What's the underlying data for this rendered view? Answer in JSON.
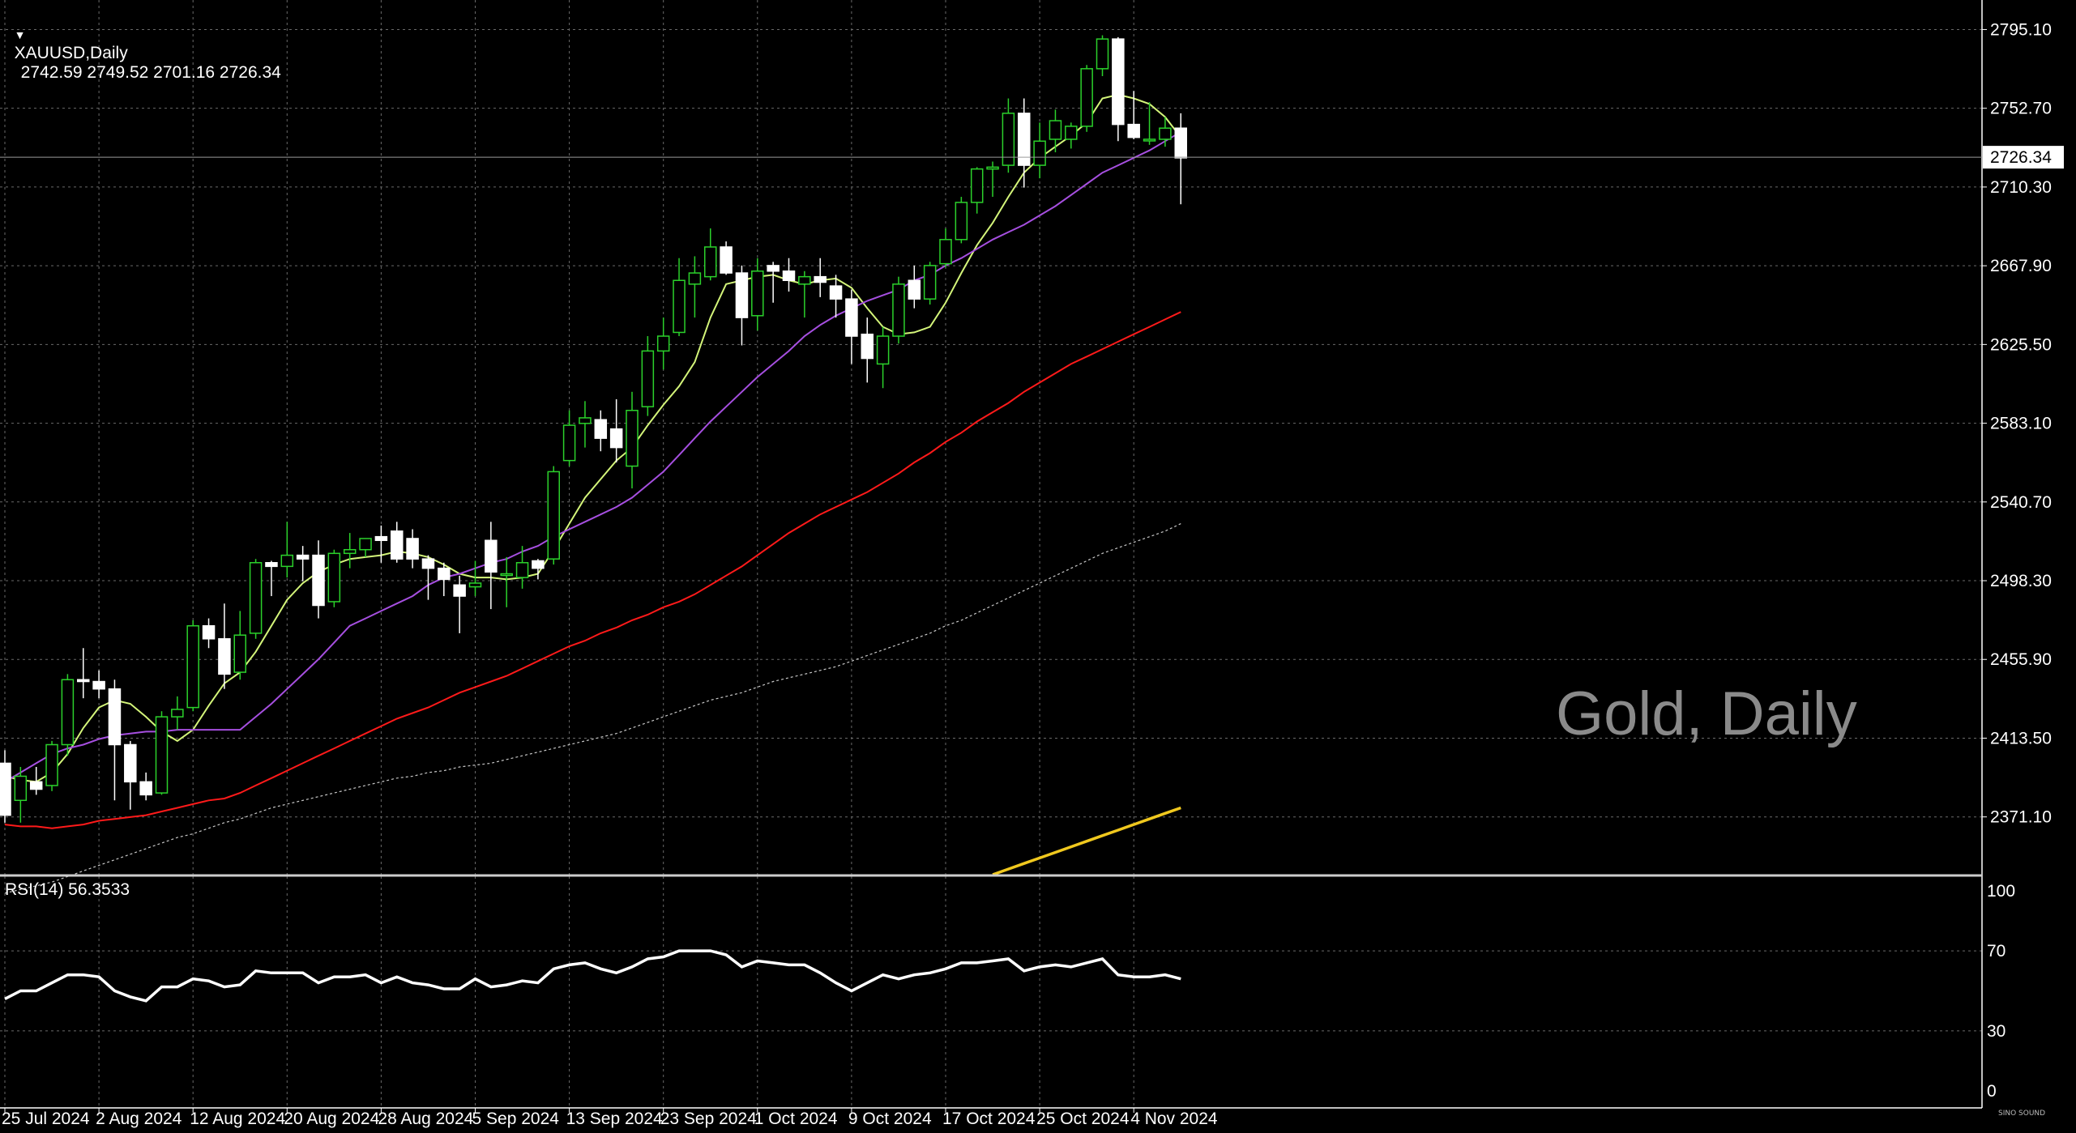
{
  "header": {
    "symbol": "XAUUSD,Daily",
    "ohlc": "2742.59 2749.52 2701.16 2726.34",
    "marker": "▼"
  },
  "rsi_header": {
    "label": "RSI(14) 56.3533"
  },
  "watermark": "Gold, Daily",
  "logo": "SINO SOUND",
  "chart_data": {
    "type": "candlestick",
    "price_axis": {
      "ticks": [
        "2795.10",
        "2752.70",
        "2710.30",
        "2667.90",
        "2625.50",
        "2583.10",
        "2540.70",
        "2498.30",
        "2455.90",
        "2413.50",
        "2371.10"
      ],
      "current_price": "2726.34",
      "ylim": [
        2340,
        2811
      ]
    },
    "date_labels": [
      "25 Jul 2024",
      "2 Aug 2024",
      "12 Aug 2024",
      "20 Aug 2024",
      "28 Aug 2024",
      "5 Sep 2024",
      "13 Sep 2024",
      "23 Sep 2024",
      "1 Oct 2024",
      "9 Oct 2024",
      "17 Oct 2024",
      "25 Oct 2024",
      "4 Nov 2024"
    ],
    "date_label_index": [
      0,
      6,
      12,
      18,
      24,
      30,
      36,
      42,
      48,
      54,
      60,
      66,
      72
    ],
    "ohlc": [
      [
        2400,
        2407,
        2368,
        2372
      ],
      [
        2380,
        2398,
        2368,
        2393
      ],
      [
        2390,
        2398,
        2383,
        2386
      ],
      [
        2388,
        2412,
        2385,
        2410
      ],
      [
        2410,
        2448,
        2404,
        2445
      ],
      [
        2445,
        2462,
        2435,
        2444
      ],
      [
        2444,
        2450,
        2435,
        2440
      ],
      [
        2440,
        2445,
        2380,
        2410
      ],
      [
        2410,
        2412,
        2375,
        2390
      ],
      [
        2390,
        2395,
        2380,
        2383
      ],
      [
        2384,
        2428,
        2383,
        2425
      ],
      [
        2425,
        2436,
        2418,
        2429
      ],
      [
        2430,
        2477,
        2428,
        2474
      ],
      [
        2474,
        2478,
        2462,
        2467
      ],
      [
        2467,
        2486,
        2440,
        2448
      ],
      [
        2449,
        2482,
        2445,
        2469
      ],
      [
        2470,
        2510,
        2467,
        2508
      ],
      [
        2508,
        2509,
        2490,
        2506
      ],
      [
        2506,
        2530,
        2500,
        2512
      ],
      [
        2512,
        2517,
        2498,
        2510
      ],
      [
        2512,
        2520,
        2478,
        2485
      ],
      [
        2487,
        2515,
        2484,
        2513
      ],
      [
        2513,
        2524,
        2505,
        2515
      ],
      [
        2515,
        2520,
        2511,
        2521
      ],
      [
        2522,
        2528,
        2508,
        2520
      ],
      [
        2525,
        2530,
        2508,
        2510
      ],
      [
        2521,
        2526,
        2505,
        2510
      ],
      [
        2510,
        2512,
        2488,
        2505
      ],
      [
        2505,
        2508,
        2490,
        2499
      ],
      [
        2496,
        2501,
        2470,
        2490
      ],
      [
        2495,
        2509,
        2490,
        2497
      ],
      [
        2520,
        2530,
        2483,
        2503
      ],
      [
        2502,
        2511,
        2484,
        2502
      ],
      [
        2500,
        2517,
        2494,
        2508
      ],
      [
        2509,
        2510,
        2499,
        2505
      ],
      [
        2510,
        2560,
        2507,
        2557
      ],
      [
        2563,
        2590,
        2560,
        2582
      ],
      [
        2583,
        2595,
        2570,
        2586
      ],
      [
        2585,
        2590,
        2568,
        2575
      ],
      [
        2580,
        2596,
        2562,
        2570
      ],
      [
        2560,
        2600,
        2548,
        2590
      ],
      [
        2592,
        2630,
        2587,
        2622
      ],
      [
        2622,
        2640,
        2612,
        2630
      ],
      [
        2632,
        2672,
        2630,
        2660
      ],
      [
        2658,
        2673,
        2640,
        2664
      ],
      [
        2662,
        2688,
        2660,
        2678
      ],
      [
        2678,
        2681,
        2663,
        2664
      ],
      [
        2664,
        2668,
        2625,
        2640
      ],
      [
        2641,
        2672,
        2633,
        2665
      ],
      [
        2668,
        2670,
        2648,
        2665
      ],
      [
        2665,
        2672,
        2654,
        2660
      ],
      [
        2658,
        2665,
        2640,
        2662
      ],
      [
        2662,
        2672,
        2651,
        2659
      ],
      [
        2657,
        2663,
        2640,
        2650
      ],
      [
        2650,
        2655,
        2615,
        2630
      ],
      [
        2631,
        2640,
        2605,
        2618
      ],
      [
        2615,
        2635,
        2602,
        2630
      ],
      [
        2630,
        2662,
        2626,
        2658
      ],
      [
        2660,
        2668,
        2645,
        2650
      ],
      [
        2650,
        2670,
        2647,
        2668
      ],
      [
        2669,
        2688,
        2667,
        2682
      ],
      [
        2682,
        2705,
        2680,
        2702
      ],
      [
        2702,
        2721,
        2696,
        2720
      ],
      [
        2720,
        2724,
        2705,
        2721
      ],
      [
        2722,
        2758,
        2718,
        2750
      ],
      [
        2750,
        2758,
        2710,
        2722
      ],
      [
        2722,
        2745,
        2715,
        2735
      ],
      [
        2736,
        2752,
        2729,
        2746
      ],
      [
        2736,
        2745,
        2731,
        2743
      ],
      [
        2743,
        2776,
        2740,
        2774
      ],
      [
        2774,
        2792,
        2770,
        2790
      ],
      [
        2790,
        2791,
        2735,
        2744
      ],
      [
        2744,
        2762,
        2736,
        2737
      ],
      [
        2736,
        2756,
        2733,
        2736
      ],
      [
        2736,
        2748,
        2732,
        2742
      ],
      [
        2742,
        2750,
        2701,
        2726
      ]
    ],
    "series": [
      {
        "name": "MA fast",
        "color": "#d4f57a",
        "values": [
          2393,
          2391,
          2390,
          2395,
          2405,
          2419,
          2430,
          2434,
          2432,
          2425,
          2417,
          2412,
          2418,
          2431,
          2443,
          2449,
          2460,
          2474,
          2488,
          2497,
          2503,
          2507,
          2510,
          2511,
          2512,
          2514,
          2513,
          2511,
          2507,
          2502,
          2500,
          2500,
          2499,
          2500,
          2502,
          2515,
          2529,
          2543,
          2553,
          2563,
          2570,
          2582,
          2593,
          2603,
          2616,
          2640,
          2658,
          2660,
          2662,
          2663,
          2660,
          2658,
          2660,
          2661,
          2656,
          2645,
          2635,
          2631,
          2632,
          2635,
          2648,
          2664,
          2679,
          2691,
          2705,
          2718,
          2726,
          2732,
          2738,
          2745,
          2758,
          2760,
          2758,
          2755,
          2748,
          2737
        ]
      },
      {
        "name": "MA mid",
        "color": "#a64fe0",
        "values": [
          2390,
          2395,
          2400,
          2405,
          2408,
          2410,
          2413,
          2415,
          2416,
          2417,
          2417,
          2418,
          2418,
          2418,
          2418,
          2418,
          2425,
          2432,
          2440,
          2448,
          2456,
          2465,
          2474,
          2478,
          2482,
          2486,
          2490,
          2496,
          2500,
          2502,
          2505,
          2508,
          2510,
          2514,
          2517,
          2522,
          2526,
          2530,
          2534,
          2538,
          2543,
          2550,
          2557,
          2566,
          2575,
          2584,
          2592,
          2600,
          2608,
          2615,
          2622,
          2630,
          2636,
          2641,
          2645,
          2649,
          2652,
          2655,
          2660,
          2663,
          2668,
          2672,
          2677,
          2682,
          2686,
          2690,
          2695,
          2700,
          2706,
          2712,
          2718,
          2722,
          2726,
          2730,
          2735,
          2740
        ]
      },
      {
        "name": "MA slow",
        "color": "#ff1a1a",
        "values": [
          2367,
          2366,
          2366,
          2365,
          2366,
          2367,
          2369,
          2370,
          2371,
          2372,
          2374,
          2376,
          2378,
          2380,
          2381,
          2384,
          2388,
          2392,
          2396,
          2400,
          2404,
          2408,
          2412,
          2416,
          2420,
          2424,
          2427,
          2430,
          2434,
          2438,
          2441,
          2444,
          2447,
          2451,
          2455,
          2459,
          2463,
          2466,
          2470,
          2473,
          2477,
          2480,
          2484,
          2487,
          2491,
          2496,
          2501,
          2506,
          2512,
          2518,
          2524,
          2529,
          2534,
          2538,
          2542,
          2546,
          2551,
          2556,
          2562,
          2567,
          2573,
          2578,
          2584,
          2589,
          2594,
          2600,
          2605,
          2610,
          2615,
          2619,
          2623,
          2627,
          2631,
          2635,
          2639,
          2643
        ]
      },
      {
        "name": "MA 100",
        "color": "#c8c8c8",
        "dashed": true,
        "values": [
          2330,
          2332,
          2334,
          2336,
          2339,
          2342,
          2345,
          2348,
          2351,
          2354,
          2357,
          2360,
          2362,
          2365,
          2368,
          2370,
          2373,
          2376,
          2378,
          2380,
          2382,
          2384,
          2386,
          2388,
          2390,
          2392,
          2393,
          2395,
          2396,
          2398,
          2399,
          2400,
          2402,
          2404,
          2406,
          2408,
          2410,
          2412,
          2414,
          2416,
          2419,
          2422,
          2425,
          2428,
          2431,
          2434,
          2436,
          2438,
          2441,
          2444,
          2446,
          2448,
          2450,
          2452,
          2455,
          2458,
          2461,
          2464,
          2467,
          2470,
          2474,
          2477,
          2481,
          2485,
          2489,
          2493,
          2497,
          2501,
          2505,
          2509,
          2513,
          2516,
          2519,
          2522,
          2525,
          2529
        ]
      },
      {
        "name": "MA 200",
        "color": "#f0c81e",
        "values": [
          null,
          null,
          null,
          null,
          null,
          null,
          null,
          null,
          null,
          null,
          null,
          null,
          null,
          null,
          null,
          null,
          null,
          null,
          null,
          null,
          null,
          null,
          null,
          null,
          null,
          null,
          null,
          null,
          null,
          null,
          null,
          null,
          null,
          null,
          null,
          null,
          null,
          null,
          null,
          null,
          null,
          null,
          null,
          null,
          null,
          null,
          null,
          null,
          null,
          null,
          null,
          null,
          null,
          null,
          null,
          null,
          null,
          null,
          null,
          null,
          null,
          null,
          null,
          2340,
          2343,
          2346,
          2349,
          2352,
          2355,
          2358,
          2361,
          2364,
          2367,
          2370,
          2373,
          2376
        ]
      }
    ],
    "rsi": {
      "ticks": [
        "100",
        "70",
        "30",
        "0"
      ],
      "ylim": [
        0,
        100
      ],
      "values": [
        46,
        50,
        50,
        54,
        58,
        58,
        57,
        50,
        47,
        45,
        52,
        52,
        56,
        55,
        52,
        53,
        60,
        59,
        59,
        59,
        54,
        57,
        57,
        58,
        54,
        57,
        54,
        53,
        51,
        51,
        56,
        52,
        53,
        55,
        54,
        61,
        63,
        64,
        61,
        59,
        62,
        66,
        67,
        70,
        70,
        70,
        68,
        62,
        65,
        64,
        63,
        63,
        59,
        54,
        50,
        54,
        58,
        56,
        58,
        59,
        61,
        64,
        64,
        65,
        66,
        60,
        62,
        63,
        62,
        64,
        66,
        58,
        57,
        57,
        58,
        56
      ]
    }
  }
}
